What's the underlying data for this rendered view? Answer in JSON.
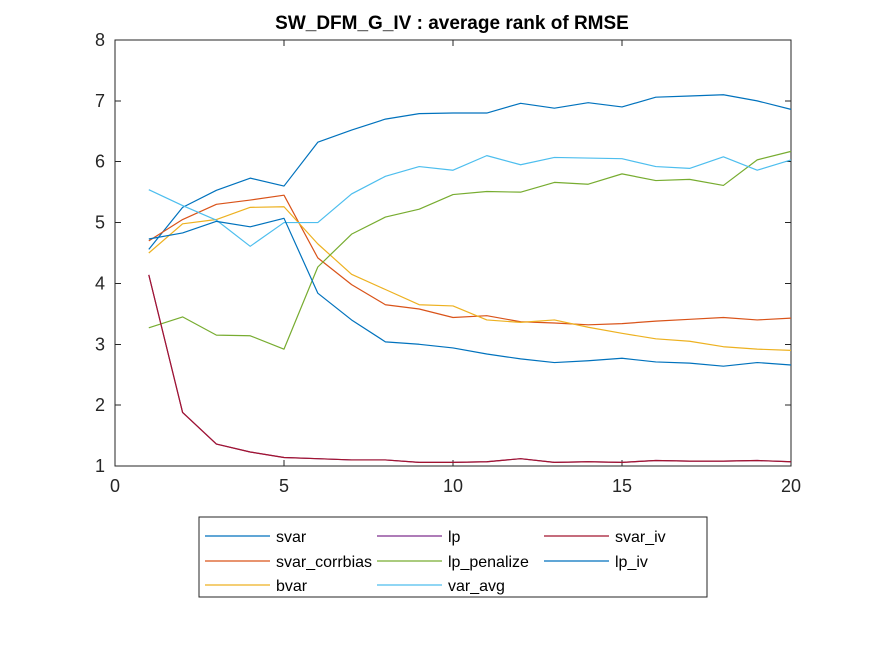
{
  "chart_data": {
    "type": "line",
    "title": "SW_DFM_G_IV : average rank of RMSE",
    "xlabel": "",
    "ylabel": "",
    "xlim": [
      0,
      20
    ],
    "ylim": [
      1,
      8
    ],
    "xticks": [
      0,
      5,
      10,
      15,
      20
    ],
    "yticks": [
      1,
      2,
      3,
      4,
      5,
      6,
      7,
      8
    ],
    "grid": false,
    "legend_placement": "bottom, outside, 3 columns",
    "x": [
      1,
      2,
      3,
      4,
      5,
      6,
      7,
      8,
      9,
      10,
      11,
      12,
      13,
      14,
      15,
      16,
      17,
      18,
      19,
      20
    ],
    "series": [
      {
        "name": "svar",
        "color": "#0072BD",
        "values": [
          4.56,
          5.25,
          5.53,
          5.73,
          5.6,
          6.32,
          6.52,
          6.7,
          6.79,
          6.8,
          6.8,
          6.96,
          6.88,
          6.97,
          6.9,
          7.06,
          7.08,
          7.1,
          7.0,
          6.86
        ]
      },
      {
        "name": "svar_corrbias",
        "color": "#D95319",
        "values": [
          4.7,
          5.05,
          5.3,
          5.37,
          5.45,
          4.42,
          3.98,
          3.65,
          3.58,
          3.44,
          3.47,
          3.37,
          3.35,
          3.32,
          3.34,
          3.38,
          3.41,
          3.44,
          3.4,
          3.43
        ]
      },
      {
        "name": "bvar",
        "color": "#EDB120",
        "values": [
          4.5,
          4.98,
          5.05,
          5.25,
          5.26,
          4.65,
          4.15,
          3.9,
          3.65,
          3.63,
          3.4,
          3.36,
          3.4,
          3.28,
          3.18,
          3.09,
          3.05,
          2.96,
          2.92,
          2.9
        ]
      },
      {
        "name": "lp",
        "color": "#7E2F8E",
        "values": [
          4.14,
          1.88,
          1.36,
          1.23,
          1.14,
          1.12,
          1.1,
          1.1,
          1.06,
          1.06,
          1.07,
          1.12,
          1.06,
          1.07,
          1.06,
          1.09,
          1.08,
          1.08,
          1.09,
          1.07
        ]
      },
      {
        "name": "lp_penalize",
        "color": "#77AC30",
        "values": [
          3.27,
          3.45,
          3.15,
          3.14,
          2.92,
          4.27,
          4.81,
          5.09,
          5.22,
          5.46,
          5.51,
          5.5,
          5.66,
          5.63,
          5.8,
          5.69,
          5.71,
          5.61,
          6.03,
          6.17
        ]
      },
      {
        "name": "var_avg",
        "color": "#4DBEEE",
        "values": [
          5.54,
          5.28,
          5.04,
          4.61,
          5.0,
          5.0,
          5.47,
          5.76,
          5.92,
          5.86,
          6.1,
          5.95,
          6.07,
          6.06,
          6.05,
          5.92,
          5.89,
          6.08,
          5.86,
          6.03
        ]
      },
      {
        "name": "svar_iv",
        "color": "#A2142F",
        "values": [
          4.14,
          1.88,
          1.36,
          1.23,
          1.14,
          1.12,
          1.1,
          1.1,
          1.06,
          1.06,
          1.07,
          1.12,
          1.06,
          1.07,
          1.06,
          1.09,
          1.08,
          1.08,
          1.09,
          1.07
        ]
      },
      {
        "name": "lp_iv",
        "color": "#0072BD",
        "values": [
          4.73,
          4.83,
          5.02,
          4.93,
          5.07,
          3.84,
          3.4,
          3.04,
          3.0,
          2.94,
          2.84,
          2.76,
          2.7,
          2.73,
          2.77,
          2.71,
          2.69,
          2.64,
          2.7,
          2.66
        ]
      }
    ],
    "legend_order": [
      "svar",
      "lp",
      "svar_iv",
      "svar_corrbias",
      "lp_penalize",
      "lp_iv",
      "bvar",
      "var_avg"
    ]
  }
}
